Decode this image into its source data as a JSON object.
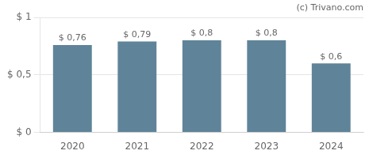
{
  "chart_data": {
    "type": "bar",
    "categories": [
      "2020",
      "2021",
      "2022",
      "2023",
      "2024"
    ],
    "values": [
      0.76,
      0.79,
      0.8,
      0.8,
      0.6
    ],
    "value_labels": [
      "$ 0,76",
      "$ 0,79",
      "$ 0,8",
      "$ 0,8",
      "$ 0,6"
    ],
    "data_labels": true,
    "color": "#5f8499",
    "ylim": [
      0,
      1.0
    ],
    "yticks": [
      {
        "value": 0,
        "label": "$ 0"
      },
      {
        "value": 0.5,
        "label": "$ 0,5"
      },
      {
        "value": 1.0,
        "label": "$ 1"
      }
    ],
    "grid": true,
    "annotations": [
      "(c) Trivano.com"
    ]
  }
}
